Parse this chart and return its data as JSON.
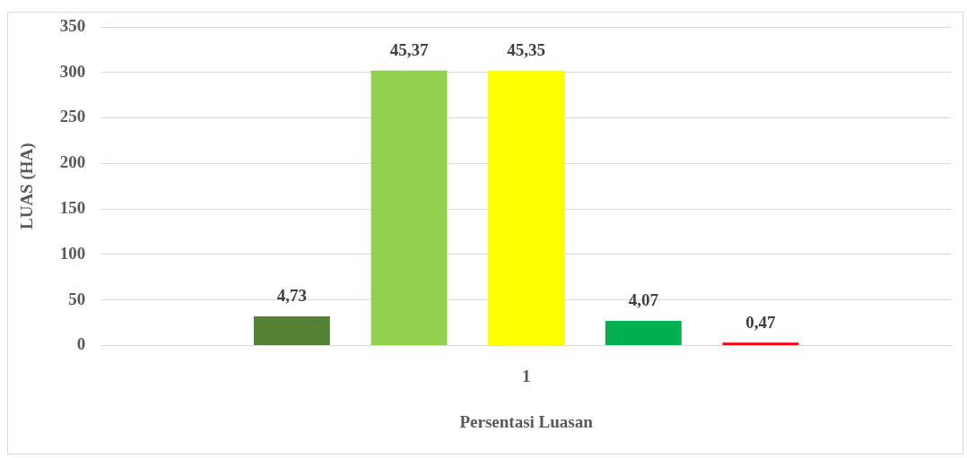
{
  "chart_data": {
    "type": "bar",
    "xlabel": "Persentasi Luasan",
    "ylabel": "LUAS (HA)",
    "categories": [
      "1"
    ],
    "series": [
      {
        "color": "#548235",
        "values": [
          32
        ]
      },
      {
        "color": "#92d050",
        "values": [
          302
        ]
      },
      {
        "color": "#ffff00",
        "values": [
          302
        ]
      },
      {
        "color": "#00b050",
        "values": [
          27
        ]
      },
      {
        "color": "#ff0000",
        "values": [
          3
        ]
      }
    ],
    "annotations": [
      "4,73",
      "45,37",
      "45,35",
      "4,07",
      "0,47"
    ],
    "ylim": [
      0,
      350
    ],
    "yticks": [
      0,
      50,
      100,
      150,
      200,
      250,
      300,
      350
    ],
    "grid": "y",
    "legend": false
  }
}
